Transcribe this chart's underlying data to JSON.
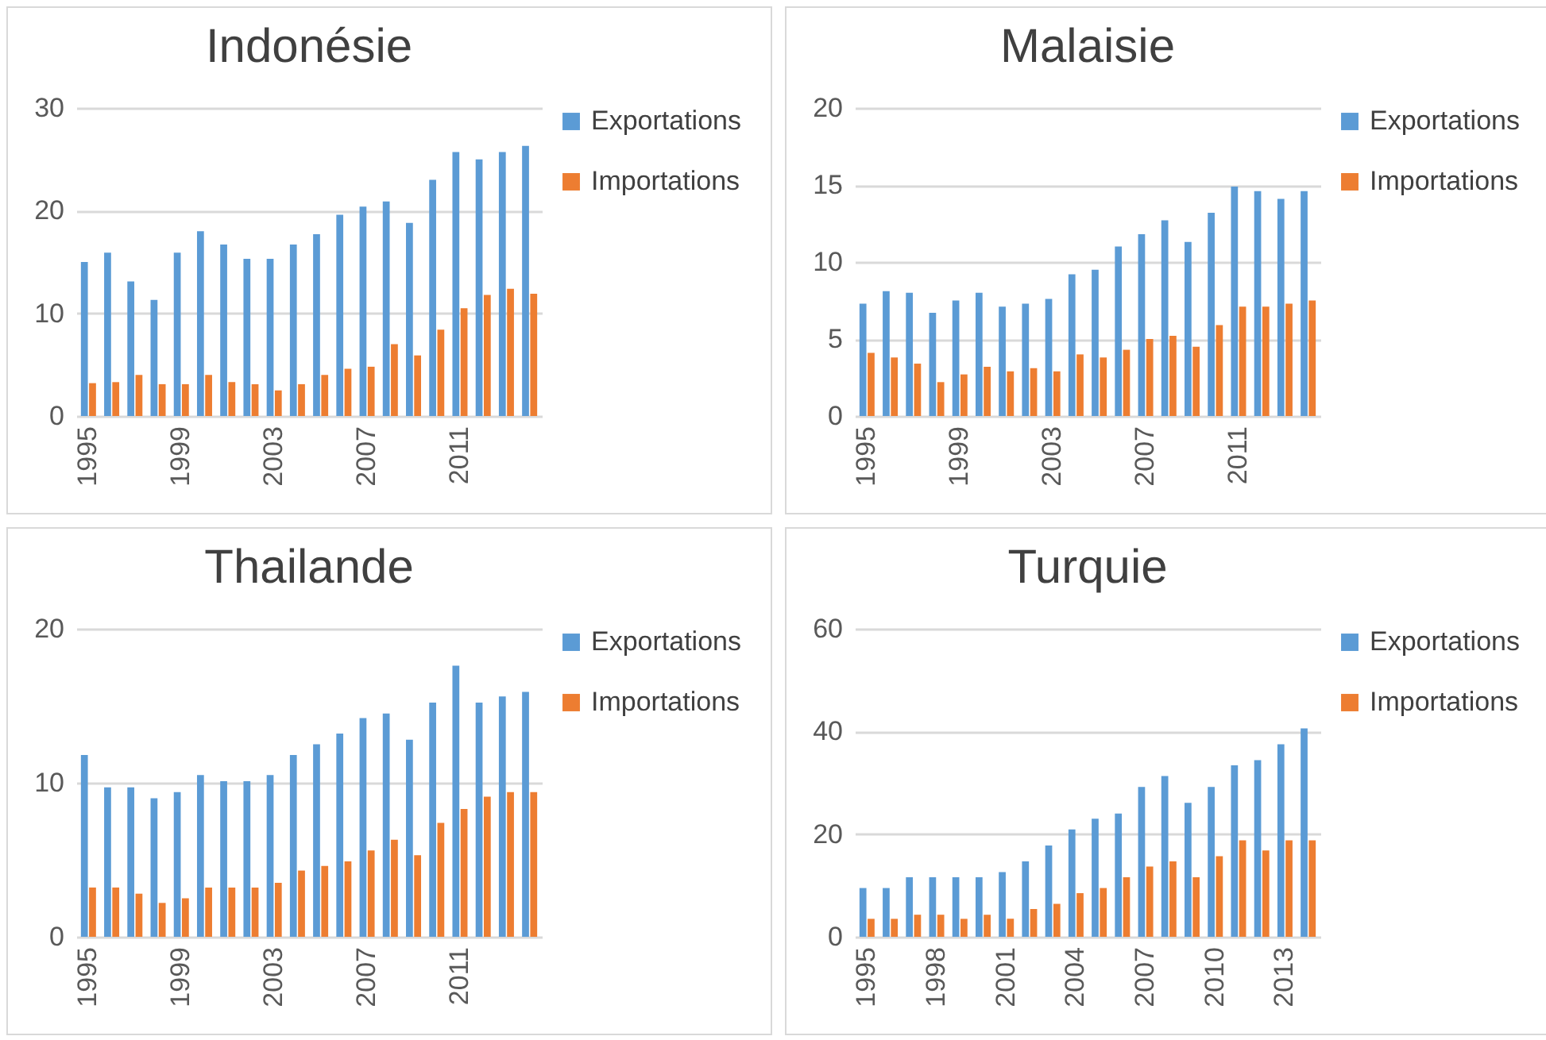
{
  "chart_data": [
    {
      "type": "bar",
      "title": "Indonésie",
      "categories": [
        "1995",
        null,
        null,
        null,
        "1999",
        null,
        null,
        null,
        "2003",
        null,
        null,
        null,
        "2007",
        null,
        null,
        null,
        "2011",
        null,
        null,
        null
      ],
      "ylim": [
        0,
        30
      ],
      "yticks": [
        0,
        10,
        20,
        30
      ],
      "grid": "y",
      "legend": "right",
      "series": [
        {
          "name": "Exportations",
          "color": "#5b9bd5",
          "values": [
            15.0,
            15.9,
            13.1,
            11.3,
            15.9,
            18.0,
            16.7,
            15.3,
            15.3,
            16.7,
            17.7,
            19.6,
            20.4,
            20.9,
            18.8,
            23.0,
            25.7,
            25.0,
            25.7,
            26.3
          ]
        },
        {
          "name": "Importations",
          "color": "#ed7d31",
          "values": [
            3.2,
            3.3,
            4.0,
            3.1,
            3.1,
            4.0,
            3.3,
            3.1,
            2.5,
            3.1,
            4.0,
            4.6,
            4.8,
            7.0,
            5.9,
            8.4,
            10.5,
            11.8,
            12.4,
            11.9
          ]
        }
      ]
    },
    {
      "type": "bar",
      "title": "Malaisie",
      "categories": [
        "1995",
        null,
        null,
        null,
        "1999",
        null,
        null,
        null,
        "2003",
        null,
        null,
        null,
        "2007",
        null,
        null,
        null,
        "2011",
        null,
        null,
        null
      ],
      "ylim": [
        0,
        20
      ],
      "yticks": [
        0,
        5,
        10,
        15,
        20
      ],
      "grid": "y",
      "legend": "right",
      "series": [
        {
          "name": "Exportations",
          "color": "#5b9bd5",
          "values": [
            7.3,
            8.1,
            8.0,
            6.7,
            7.5,
            8.0,
            7.1,
            7.3,
            7.6,
            9.2,
            9.5,
            11.0,
            11.8,
            12.7,
            11.3,
            13.2,
            14.9,
            14.6,
            14.1,
            14.6
          ]
        },
        {
          "name": "Importations",
          "color": "#ed7d31",
          "values": [
            4.1,
            3.8,
            3.4,
            2.2,
            2.7,
            3.2,
            2.9,
            3.1,
            2.9,
            4.0,
            3.8,
            4.3,
            5.0,
            5.2,
            4.5,
            5.9,
            7.1,
            7.1,
            7.3,
            7.5
          ]
        }
      ]
    },
    {
      "type": "bar",
      "title": "Thailande",
      "categories": [
        "1995",
        null,
        null,
        null,
        "1999",
        null,
        null,
        null,
        "2003",
        null,
        null,
        null,
        "2007",
        null,
        null,
        null,
        "2011",
        null,
        null,
        null
      ],
      "ylim": [
        0,
        20
      ],
      "yticks": [
        0,
        10,
        20
      ],
      "grid": "y",
      "legend": "right",
      "series": [
        {
          "name": "Exportations",
          "color": "#5b9bd5",
          "values": [
            11.8,
            9.7,
            9.7,
            9.0,
            9.4,
            10.5,
            10.1,
            10.1,
            10.5,
            11.8,
            12.5,
            13.2,
            14.2,
            14.5,
            12.8,
            15.2,
            17.6,
            15.2,
            15.6,
            15.9
          ]
        },
        {
          "name": "Importations",
          "color": "#ed7d31",
          "values": [
            3.2,
            3.2,
            2.8,
            2.2,
            2.5,
            3.2,
            3.2,
            3.2,
            3.5,
            4.3,
            4.6,
            4.9,
            5.6,
            6.3,
            5.3,
            7.4,
            8.3,
            9.1,
            9.4,
            9.4
          ]
        }
      ]
    },
    {
      "type": "bar",
      "title": "Turquie",
      "categories": [
        "1995",
        null,
        null,
        "1998",
        null,
        null,
        "2001",
        null,
        null,
        "2004",
        null,
        null,
        "2007",
        null,
        null,
        "2010",
        null,
        null,
        "2013",
        null
      ],
      "ylim": [
        0,
        60
      ],
      "yticks": [
        0,
        20,
        40,
        60
      ],
      "grid": "y",
      "legend": "right",
      "series": [
        {
          "name": "Exportations",
          "color": "#5b9bd5",
          "values": [
            9.5,
            9.5,
            11.6,
            11.6,
            11.6,
            11.6,
            12.6,
            14.7,
            17.8,
            20.9,
            23.0,
            24.0,
            29.2,
            31.3,
            26.1,
            29.2,
            33.4,
            34.4,
            37.5,
            40.6
          ]
        },
        {
          "name": "Importations",
          "color": "#ed7d31",
          "values": [
            3.5,
            3.5,
            4.3,
            4.3,
            3.5,
            4.3,
            3.5,
            5.4,
            6.4,
            8.5,
            9.5,
            11.6,
            13.7,
            14.7,
            11.6,
            15.7,
            18.8,
            16.8,
            18.8,
            18.8
          ]
        }
      ]
    }
  ]
}
